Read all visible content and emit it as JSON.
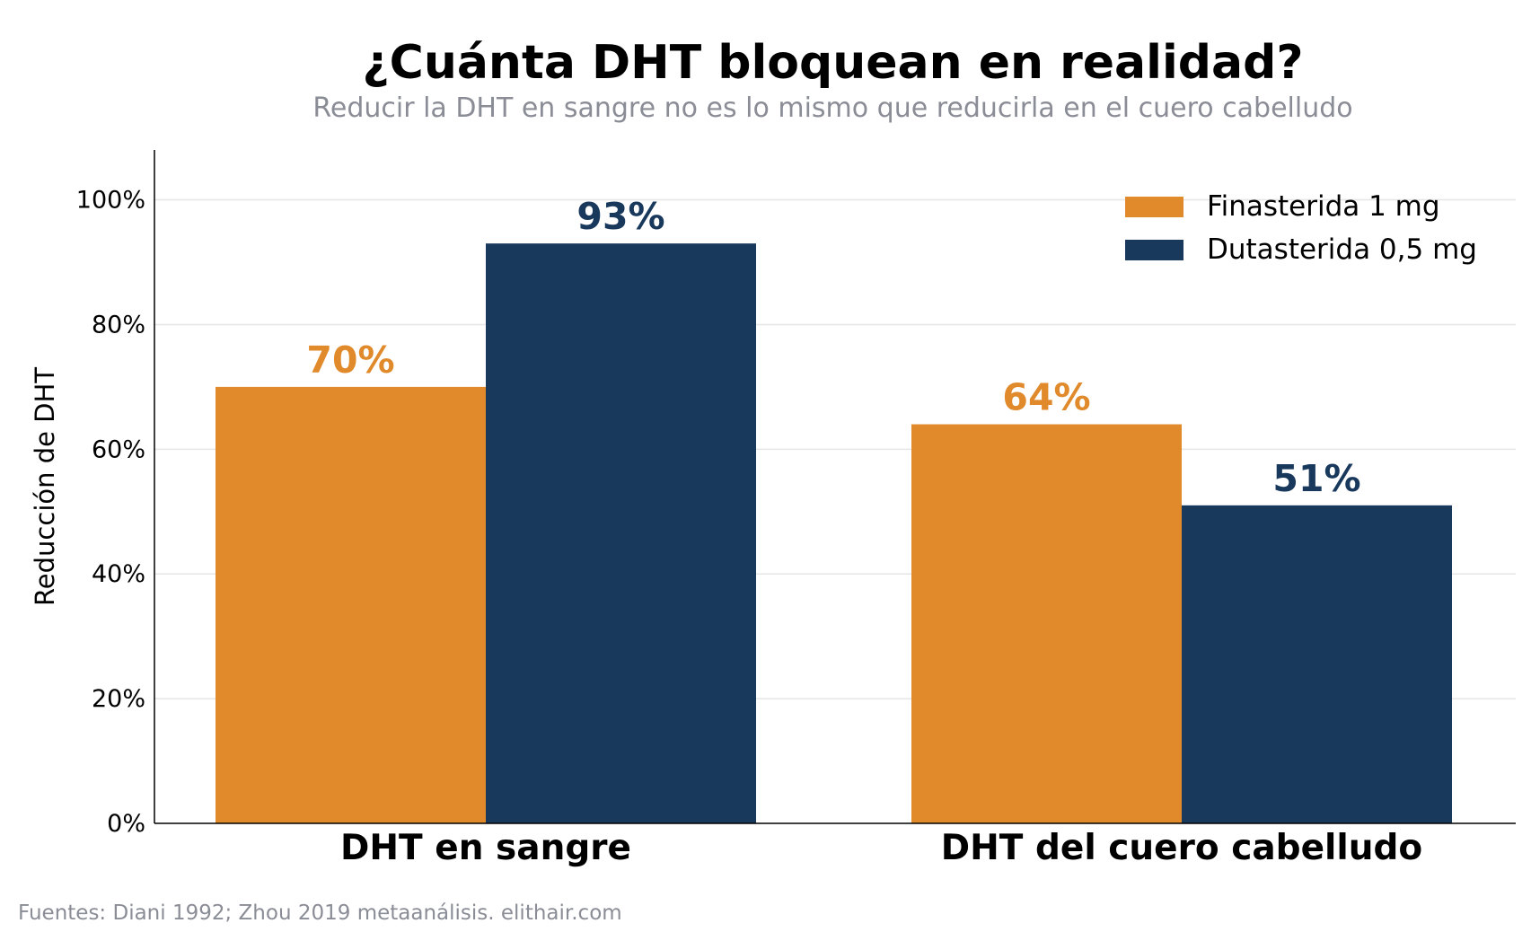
{
  "chart_data": {
    "type": "bar",
    "title": "¿Cuánta DHT bloquean en realidad?",
    "subtitle": "Reducir la DHT en sangre no es lo mismo que reducirla en el cuero cabelludo",
    "categories": [
      "DHT en sangre",
      "DHT del cuero cabelludo"
    ],
    "series": [
      {
        "name": "Finasterida 1 mg",
        "values": [
          70,
          64
        ],
        "labels": [
          "70%",
          "64%"
        ],
        "color": "#e08a2c"
      },
      {
        "name": "Dutasterida 0,5 mg",
        "values": [
          93,
          51
        ],
        "labels": [
          "93%",
          "51%"
        ],
        "color": "#18385c"
      }
    ],
    "ylabel": "Reducción de DHT",
    "xlabel": "",
    "ylim": [
      0,
      108
    ],
    "yticks": [
      0,
      20,
      40,
      60,
      80,
      100
    ],
    "ytick_labels": [
      "0%",
      "20%",
      "40%",
      "60%",
      "80%",
      "100%"
    ],
    "grid": "horizontal",
    "legend_position": "top-right",
    "source": "Fuentes: Diani 1992; Zhou 2019 metaanálisis. elithair.com"
  }
}
